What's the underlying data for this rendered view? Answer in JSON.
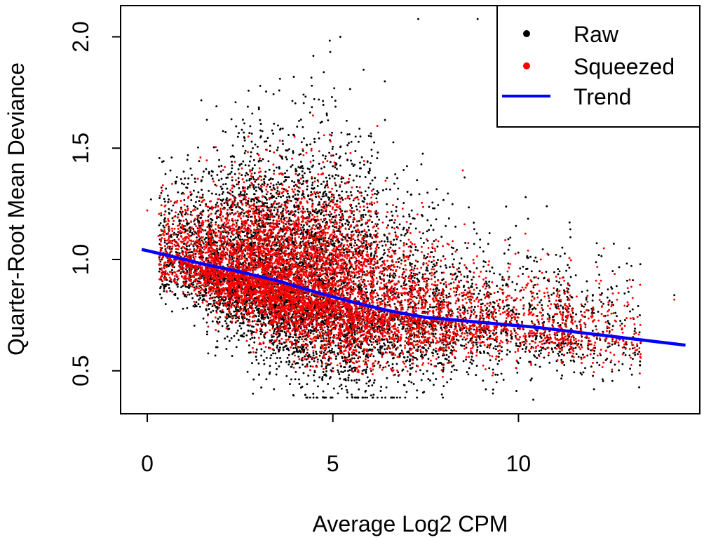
{
  "chart_data": {
    "type": "scatter",
    "title": "",
    "xlabel": "Average Log2 CPM",
    "ylabel": "Quarter-Root Mean Deviance",
    "xlim": [
      -0.7,
      14.9
    ],
    "ylim": [
      0.37,
      2.1
    ],
    "x_ticks": [
      0,
      5,
      10
    ],
    "y_ticks": [
      0.5,
      1.0,
      1.5,
      2.0
    ],
    "x_tick_labels": [
      "0",
      "5",
      "10"
    ],
    "y_tick_labels": [
      "0.5",
      "1.0",
      "1.5",
      "2.0"
    ],
    "grid": false,
    "legend_position": "top-right",
    "legend": [
      {
        "label": "Raw",
        "kind": "point",
        "color": "#000000"
      },
      {
        "label": "Squeezed",
        "kind": "point",
        "color": "#ff0000"
      },
      {
        "label": "Trend",
        "kind": "line",
        "color": "#0000ff"
      }
    ],
    "series": [
      {
        "name": "Raw",
        "kind": "points",
        "color": "#000000",
        "approx_count": 7000,
        "description_of_cloud": "dense cloud, x mostly 0-9, y ~0.45-2.05",
        "sample_points": [
          [
            0.1,
            1.27
          ],
          [
            0.6,
            1.05
          ],
          [
            1.2,
            1.38
          ],
          [
            2.0,
            0.82
          ],
          [
            2.6,
            1.57
          ],
          [
            3.2,
            1.2
          ],
          [
            3.9,
            0.62
          ],
          [
            4.5,
            1.72
          ],
          [
            5.2,
            2.0
          ],
          [
            5.8,
            0.5
          ],
          [
            6.4,
            1.8
          ],
          [
            7.3,
            2.08
          ],
          [
            8.9,
            2.08
          ],
          [
            9.6,
            0.46
          ],
          [
            10.4,
            0.37
          ],
          [
            11.4,
            1.1
          ],
          [
            12.0,
            0.68
          ],
          [
            14.2,
            0.84
          ]
        ]
      },
      {
        "name": "Squeezed",
        "kind": "points",
        "color": "#ff0000",
        "approx_count": 7000,
        "description_of_cloud": "cloud pulled toward trend, x mostly 0-9, y ~0.55-2.0",
        "sample_points": [
          [
            0.0,
            1.22
          ],
          [
            0.8,
            1.0
          ],
          [
            1.5,
            1.1
          ],
          [
            2.3,
            0.9
          ],
          [
            3.0,
            1.0
          ],
          [
            3.8,
            0.86
          ],
          [
            4.6,
            1.3
          ],
          [
            5.3,
            0.8
          ],
          [
            6.2,
            1.6
          ],
          [
            7.0,
            0.72
          ],
          [
            8.5,
            1.4
          ],
          [
            9.2,
            0.7
          ],
          [
            10.6,
            1.0
          ],
          [
            11.8,
            0.65
          ],
          [
            12.3,
            1.05
          ],
          [
            14.2,
            0.82
          ]
        ]
      },
      {
        "name": "Trend",
        "kind": "line",
        "color": "#0000ff",
        "x": [
          -0.15,
          0.5,
          1.5,
          2.5,
          3.5,
          4.5,
          5.5,
          6.5,
          7.5,
          8.5,
          9.5,
          10.5,
          11.5,
          12.5,
          13.5,
          14.5
        ],
        "y": [
          1.045,
          1.02,
          0.98,
          0.945,
          0.905,
          0.855,
          0.81,
          0.77,
          0.74,
          0.725,
          0.71,
          0.695,
          0.675,
          0.655,
          0.635,
          0.615
        ]
      }
    ]
  }
}
